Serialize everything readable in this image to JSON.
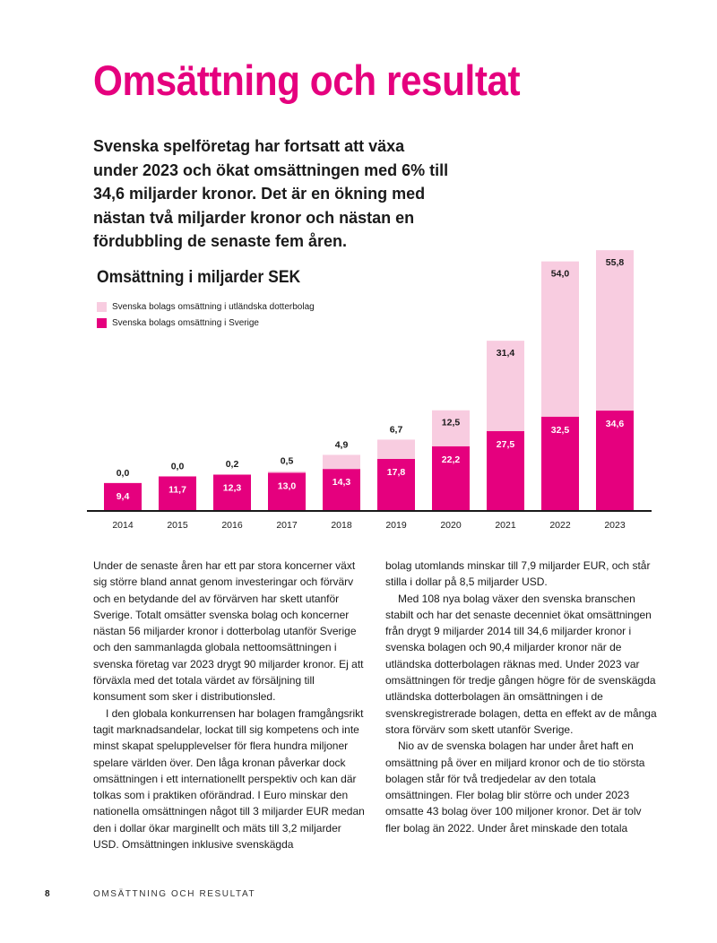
{
  "title": "Omsättning och resultat",
  "lead": "Svenska spelföretag har fortsatt att växa under 2023 och ökat omsättningen med 6% till 34,6 miljarder kronor. Det är en ökning med nästan två miljarder kronor och nästan en fördubbling de senaste fem åren.",
  "chart_data": {
    "type": "bar",
    "stacked": true,
    "title": "Omsättning i miljarder SEK",
    "categories": [
      "2014",
      "2015",
      "2016",
      "2017",
      "2018",
      "2019",
      "2020",
      "2021",
      "2022",
      "2023"
    ],
    "series": [
      {
        "name": "Svenska bolags omsättning i Sverige",
        "color": "#e5007e",
        "values": [
          9.4,
          11.7,
          12.3,
          13.0,
          14.3,
          17.8,
          22.2,
          27.5,
          32.5,
          34.6
        ],
        "labels": [
          "9,4",
          "11,7",
          "12,3",
          "13,0",
          "14,3",
          "17,8",
          "22,2",
          "27,5",
          "32,5",
          "34,6"
        ]
      },
      {
        "name": "Svenska bolags omsättning i utländska dotterbolag",
        "color": "#f8cce0",
        "values": [
          0.0,
          0.0,
          0.2,
          0.5,
          4.9,
          6.7,
          12.5,
          31.4,
          54.0,
          55.8
        ],
        "labels": [
          "0,0",
          "0,0",
          "0,2",
          "0,5",
          "4,9",
          "6,7",
          "12,5",
          "31,4",
          "54,0",
          "55,8"
        ]
      }
    ],
    "legend_order": [
      1,
      0
    ],
    "xlabel": "",
    "ylabel": "",
    "ylim": [
      0,
      92
    ],
    "grid": false
  },
  "body_left": [
    "Under de senaste åren har ett par stora koncerner växt sig större bland annat genom investeringar och förvärv och en betydande del av förvärven har skett utanför Sverige. Totalt omsätter svenska bolag och koncerner nästan 56 miljarder kronor i dotterbolag utanför Sverige och den sammanlagda globala nettoomsättningen i svenska företag var 2023 drygt 90 miljarder kronor. Ej att förväxla med det totala värdet av försäljning till konsument som sker i distributionsled.",
    "I den globala konkurrensen har bolagen framgångs­rikt tagit marknadsandelar, lockat till sig kompetens och inte minst skapat spelupplevelser för flera hundra miljoner spelare världen över. Den låga kronan påver­kar dock omsättningen i ett internationellt perspektiv och kan där tolkas som i praktiken oförändrad. I Euro minskar den nationella omsättningen något till 3 miljar­der EUR medan den i dollar ökar marginellt och mäts till 3,2 miljarder USD. Omsättningen inklusive svenskägda"
  ],
  "body_right": [
    "bolag utomlands minskar till 7,9 miljarder EUR, och står stilla i dollar på 8,5 miljarder USD.",
    "Med 108 nya bolag växer den svenska branschen stabilt och har det senaste decenniet ökat omsätt­ningen från drygt 9 miljarder 2014 till 34,6 miljarder kronor i svenska bolagen och 90,4 miljarder kronor när de utländska dotterbolagen räknas med. Under 2023 var omsättningen för tredje gången högre för de svenskägda utländska dotterbolagen än omsätt­ningen i de svenskregistrerade bolagen, detta en effekt av de många stora förvärv som skett utanför Sverige.",
    "Nio av de svenska bolagen har under året haft en omsättning på över en miljard kronor och de tio största bolagen står för två tredjedelar av den totala omsättningen. Fler bolag blir större och under 2023 omsatte 43 bolag över 100 miljoner kronor. Det är tolv fler bolag än 2022. Under året minskade den totala"
  ],
  "footer": {
    "page_number": "8",
    "running_head": "OMSÄTTNING OCH RESULTAT"
  }
}
